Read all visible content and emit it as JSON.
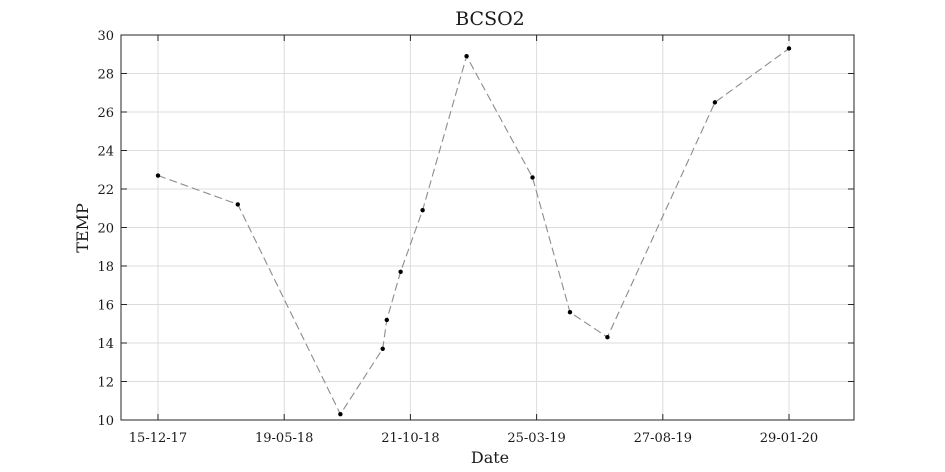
{
  "chart_data": {
    "type": "line",
    "title": "BCSO2",
    "xlabel": "Date",
    "ylabel": "TEMP",
    "x_ticks": [
      "15-12-17",
      "19-05-18",
      "21-10-18",
      "25-03-19",
      "27-08-19",
      "29-01-20"
    ],
    "ylim": [
      10,
      30
    ],
    "y_ticks": [
      "10",
      "12",
      "14",
      "16",
      "18",
      "20",
      "22",
      "24",
      "26",
      "28",
      "30"
    ],
    "grid": true,
    "line_style": "dashed",
    "colors": {
      "line": "#8c8c8c",
      "marker": "#000000",
      "grid": "#dcdcdc",
      "axis": "#262626"
    },
    "series": [
      {
        "x": [
          "2017-12-15",
          "2018-03-23",
          "2018-07-27",
          "2018-09-17",
          "2018-09-22",
          "2018-10-09",
          "2018-11-05",
          "2018-12-29",
          "2019-03-20",
          "2019-05-05",
          "2019-06-20",
          "2019-10-30",
          "2020-01-29"
        ],
        "values": [
          22.7,
          21.2,
          10.3,
          13.7,
          15.2,
          17.7,
          20.9,
          28.9,
          22.6,
          15.6,
          14.3,
          26.5,
          29.3
        ]
      }
    ]
  }
}
